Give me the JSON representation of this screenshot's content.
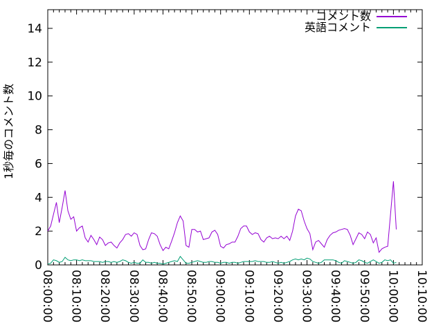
{
  "window": {
    "title": ""
  },
  "colors": {
    "background": "#ffffff",
    "border": "#000000",
    "text": "#000000",
    "series1": "#9400d3",
    "series2": "#009e73"
  },
  "chart_data": {
    "type": "line",
    "title": "",
    "xlabel": "",
    "ylabel": "1秒毎のコメント数",
    "legend_position": "top-right-inside",
    "grid": false,
    "ylim": [
      0,
      15
    ],
    "y_ticks": [
      0,
      2,
      4,
      6,
      8,
      10,
      12,
      14
    ],
    "x_tick_labels": [
      "08:00:00",
      "08:10:00",
      "08:20:00",
      "08:30:00",
      "08:40:00",
      "08:50:00",
      "09:00:00",
      "09:10:00",
      "09:20:00",
      "09:30:00",
      "09:40:00",
      "09:50:00",
      "10:00:00",
      "10:10:00"
    ],
    "x_tick_rotation_degrees": 90,
    "x_range_minutes": [
      0,
      130
    ],
    "x_major_tick_interval_minutes": 10,
    "x_minor_tick_interval_minutes": 2,
    "sample_start": "08:00:00",
    "sample_interval_minutes": 1,
    "series": [
      {
        "name": "コメント数",
        "color": "#9400d3",
        "values": [
          2.0,
          2.3,
          3.0,
          3.7,
          2.5,
          3.4,
          4.4,
          3.2,
          2.7,
          2.85,
          2.0,
          2.2,
          2.3,
          1.6,
          1.35,
          1.75,
          1.5,
          1.2,
          1.65,
          1.5,
          1.15,
          1.3,
          1.35,
          1.15,
          1.0,
          1.3,
          1.5,
          1.8,
          1.85,
          1.7,
          1.9,
          1.8,
          1.15,
          0.9,
          0.95,
          1.5,
          1.9,
          1.85,
          1.7,
          1.2,
          0.85,
          1.05,
          0.95,
          1.4,
          1.9,
          2.5,
          2.9,
          2.6,
          1.15,
          1.05,
          2.1,
          2.1,
          1.95,
          2.0,
          1.5,
          1.55,
          1.6,
          1.95,
          2.05,
          1.8,
          1.1,
          1.0,
          1.2,
          1.25,
          1.35,
          1.35,
          1.7,
          2.15,
          2.3,
          2.3,
          1.95,
          1.8,
          1.9,
          1.85,
          1.5,
          1.35,
          1.6,
          1.7,
          1.55,
          1.6,
          1.55,
          1.7,
          1.55,
          1.7,
          1.45,
          2.0,
          2.9,
          3.3,
          3.2,
          2.6,
          2.15,
          1.85,
          0.9,
          1.35,
          1.45,
          1.25,
          1.05,
          1.5,
          1.75,
          1.9,
          1.95,
          2.05,
          2.1,
          2.15,
          2.1,
          1.75,
          1.2,
          1.55,
          1.9,
          1.8,
          1.55,
          1.95,
          1.8,
          1.3,
          1.6,
          0.75,
          0.95,
          1.05,
          1.1,
          3.0,
          4.95,
          2.1
        ]
      },
      {
        "name": "英語コメント",
        "color": "#009e73",
        "values": [
          0.05,
          0.1,
          0.3,
          0.25,
          0.15,
          0.2,
          0.45,
          0.3,
          0.25,
          0.3,
          0.3,
          0.25,
          0.3,
          0.25,
          0.25,
          0.25,
          0.2,
          0.2,
          0.2,
          0.15,
          0.2,
          0.2,
          0.15,
          0.2,
          0.15,
          0.2,
          0.3,
          0.25,
          0.15,
          0.1,
          0.15,
          0.1,
          0.1,
          0.3,
          0.15,
          0.15,
          0.1,
          0.15,
          0.1,
          0.1,
          0.05,
          0.1,
          0.15,
          0.2,
          0.25,
          0.2,
          0.5,
          0.3,
          0.1,
          0.1,
          0.15,
          0.2,
          0.25,
          0.2,
          0.15,
          0.15,
          0.2,
          0.2,
          0.15,
          0.15,
          0.1,
          0.15,
          0.15,
          0.1,
          0.15,
          0.15,
          0.1,
          0.15,
          0.2,
          0.2,
          0.2,
          0.2,
          0.25,
          0.2,
          0.2,
          0.2,
          0.15,
          0.15,
          0.2,
          0.15,
          0.1,
          0.15,
          0.1,
          0.15,
          0.2,
          0.3,
          0.35,
          0.3,
          0.35,
          0.3,
          0.4,
          0.35,
          0.2,
          0.15,
          0.1,
          0.15,
          0.3,
          0.3,
          0.3,
          0.3,
          0.25,
          0.15,
          0.1,
          0.25,
          0.2,
          0.15,
          0.1,
          0.15,
          0.3,
          0.25,
          0.15,
          0.1,
          0.2,
          0.3,
          0.2,
          0.1,
          0.15,
          0.3,
          0.25,
          0.3,
          0.1,
          0.15
        ]
      }
    ]
  }
}
